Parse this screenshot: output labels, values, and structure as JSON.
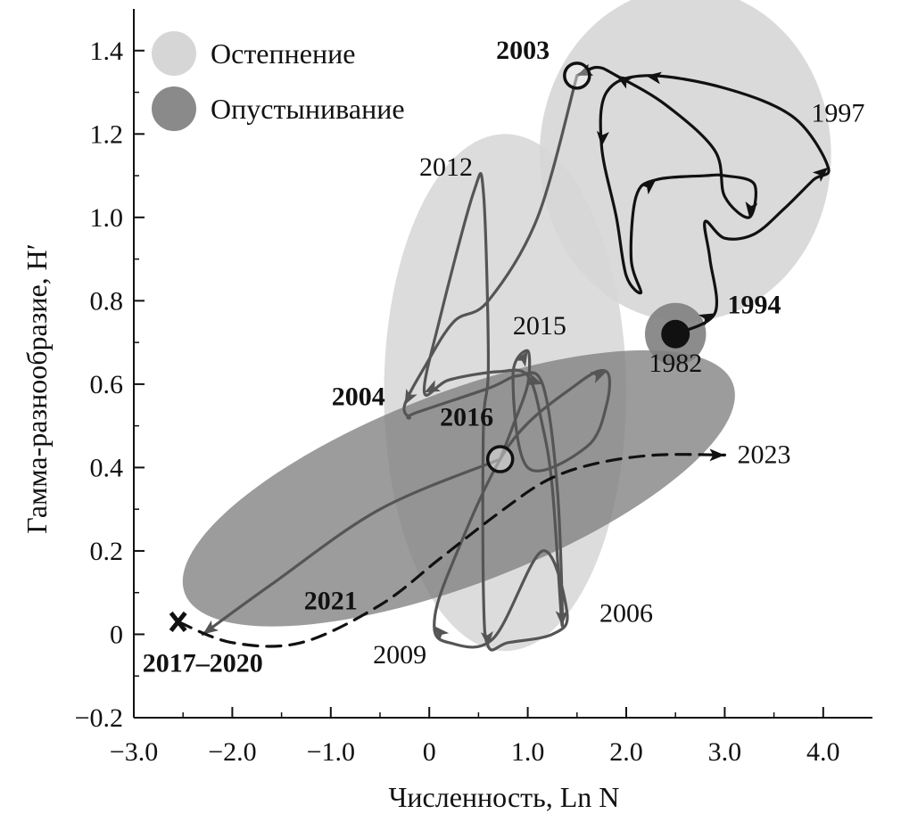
{
  "chart_data": {
    "type": "scatter",
    "title": "",
    "xlabel": "Численность, Ln N",
    "ylabel": "Гамма-разнообразие, H′",
    "xlim": [
      -3.0,
      4.5
    ],
    "ylim": [
      -0.2,
      1.5
    ],
    "xticks": [
      -3.0,
      -2.0,
      -1.0,
      0,
      1.0,
      2.0,
      3.0,
      4.0
    ],
    "xtick_labels": [
      "−3.0",
      "−2.0",
      "−1.0",
      "0",
      "1.0",
      "2.0",
      "3.0",
      "4.0"
    ],
    "yticks": [
      -0.2,
      0,
      0.2,
      0.4,
      0.6,
      0.8,
      1.0,
      1.2,
      1.4
    ],
    "ytick_labels": [
      "−0.2",
      "0",
      "0.2",
      "0.4",
      "0.6",
      "0.8",
      "1.0",
      "1.2",
      "1.4"
    ],
    "grid": false,
    "legend_position": "top-left",
    "legend": [
      {
        "label": "Остепнение",
        "color": "#d6d6d6"
      },
      {
        "label": "Опустынивание",
        "color": "#8a8a8a"
      }
    ],
    "regions": [
      {
        "kind": "Остепнение",
        "cx": 0.77,
        "cy": 0.58,
        "rx": 1.23,
        "ry": 0.62,
        "rotation_deg": 0,
        "color": "#d6d6d6",
        "opacity": 0.85
      },
      {
        "kind": "Остепнение",
        "cx": 2.6,
        "cy": 1.15,
        "rx": 1.48,
        "ry": 0.4,
        "rotation_deg": 0,
        "color": "#d6d6d6",
        "opacity": 0.9
      },
      {
        "kind": "Опустынивание",
        "cx": 0.3,
        "cy": 0.35,
        "rx": 2.98,
        "ry": 0.23,
        "rotation_deg": -21,
        "color": "#808080",
        "opacity": 0.78
      },
      {
        "kind": "Опустынивание",
        "cx": 2.5,
        "cy": 0.72,
        "rx": 0.31,
        "ry": 0.075,
        "rotation_deg": 0,
        "color": "#808080",
        "opacity": 0.9
      }
    ],
    "paths": [
      {
        "segment": "1994–2003",
        "color": "#111111",
        "style": "solid",
        "points": [
          [
            2.5,
            0.72
          ],
          [
            2.9,
            0.77
          ],
          [
            2.85,
            0.9
          ],
          [
            2.8,
            0.99
          ],
          [
            3.0,
            0.95
          ],
          [
            3.3,
            0.96
          ],
          [
            3.6,
            1.02
          ],
          [
            3.9,
            1.09
          ],
          [
            4.05,
            1.12
          ],
          [
            3.7,
            1.24
          ],
          [
            3.0,
            1.31
          ],
          [
            2.2,
            1.34
          ],
          [
            1.8,
            1.3
          ],
          [
            1.75,
            1.17
          ],
          [
            1.9,
            1.0
          ],
          [
            2.0,
            0.86
          ],
          [
            2.15,
            0.82
          ],
          [
            2.05,
            0.9
          ],
          [
            2.1,
            1.05
          ],
          [
            2.3,
            1.09
          ],
          [
            2.8,
            1.1
          ],
          [
            3.0,
            1.1
          ],
          [
            3.3,
            1.08
          ],
          [
            3.25,
            1.0
          ],
          [
            3.0,
            1.05
          ],
          [
            2.9,
            1.16
          ],
          [
            2.4,
            1.27
          ],
          [
            1.9,
            1.34
          ],
          [
            1.7,
            1.36
          ],
          [
            1.5,
            1.34
          ]
        ],
        "arrows_at": [
          1,
          8,
          11,
          13,
          19,
          23,
          27,
          29
        ]
      },
      {
        "segment": "2003–2016",
        "color": "#555555",
        "style": "solid",
        "points": [
          [
            1.5,
            1.34
          ],
          [
            1.1,
            1.0
          ],
          [
            0.6,
            0.8
          ],
          [
            0.25,
            0.75
          ],
          [
            -0.05,
            0.64
          ],
          [
            -0.25,
            0.55
          ],
          [
            -0.2,
            0.52
          ],
          [
            -0.15,
            0.53
          ],
          [
            0.6,
            0.59
          ],
          [
            0.9,
            0.62
          ],
          [
            1.15,
            0.6
          ],
          [
            1.3,
            0.35
          ],
          [
            1.35,
            0.02
          ],
          [
            1.25,
            0.35
          ],
          [
            1.15,
            0.5
          ],
          [
            1.0,
            0.62
          ],
          [
            0.7,
            0.63
          ],
          [
            0.2,
            0.61
          ],
          [
            -0.05,
            0.58
          ],
          [
            0.1,
            0.75
          ],
          [
            0.45,
            1.06
          ],
          [
            0.55,
            1.06
          ],
          [
            0.6,
            0.65
          ],
          [
            0.55,
            0.5
          ],
          [
            0.55,
            0.1
          ],
          [
            0.6,
            -0.03
          ],
          [
            0.8,
            -0.02
          ],
          [
            1.25,
            0.0
          ],
          [
            1.4,
            0.05
          ],
          [
            1.15,
            0.2
          ],
          [
            0.65,
            -0.01
          ],
          [
            0.2,
            -0.02
          ],
          [
            0.05,
            0.02
          ],
          [
            0.2,
            0.15
          ],
          [
            0.8,
            0.45
          ],
          [
            1.5,
            0.6
          ],
          [
            1.8,
            0.63
          ],
          [
            1.8,
            0.55
          ],
          [
            1.6,
            0.45
          ],
          [
            1.0,
            0.4
          ],
          [
            0.85,
            0.62
          ],
          [
            1.0,
            0.68
          ],
          [
            1.0,
            0.6
          ],
          [
            0.85,
            0.5
          ],
          [
            0.72,
            0.42
          ]
        ],
        "arrows_at": [
          5,
          10,
          12,
          18,
          25,
          32,
          36,
          41
        ]
      },
      {
        "segment": "2016–2017–2020",
        "color": "#555555",
        "style": "solid",
        "points": [
          [
            0.72,
            0.42
          ],
          [
            -0.5,
            0.3
          ],
          [
            -1.6,
            0.12
          ],
          [
            -2.3,
            0.0
          ]
        ],
        "arrows_at": [
          3
        ]
      },
      {
        "segment": "2021–2023",
        "color": "#111111",
        "style": "dashed",
        "points": [
          [
            -2.55,
            0.03
          ],
          [
            -2.0,
            -0.02
          ],
          [
            -1.3,
            -0.02
          ],
          [
            -0.5,
            0.07
          ],
          [
            0.1,
            0.18
          ],
          [
            0.7,
            0.29
          ],
          [
            1.2,
            0.37
          ],
          [
            1.7,
            0.41
          ],
          [
            2.3,
            0.43
          ],
          [
            3.0,
            0.43
          ]
        ],
        "arrows_at": [
          9
        ]
      }
    ],
    "markers": [
      {
        "year": "1994",
        "x": 2.5,
        "y": 0.72,
        "symbol": "filled-circle"
      },
      {
        "year": "2003",
        "x": 1.5,
        "y": 1.34,
        "symbol": "open-circle"
      },
      {
        "year": "2016",
        "x": 0.72,
        "y": 0.42,
        "symbol": "open-circle"
      },
      {
        "year": "2017–2020",
        "x": -2.55,
        "y": 0.03,
        "symbol": "cross"
      }
    ],
    "labels": [
      {
        "text": "2003",
        "x": 0.95,
        "y": 1.38,
        "bold": true
      },
      {
        "text": "1997",
        "x": 4.15,
        "y": 1.23,
        "bold": false
      },
      {
        "text": "2012",
        "x": 0.17,
        "y": 1.1,
        "bold": false
      },
      {
        "text": "1994",
        "x": 3.3,
        "y": 0.77,
        "bold": true
      },
      {
        "text": "2015",
        "x": 1.12,
        "y": 0.72,
        "bold": false
      },
      {
        "text": "1982",
        "x": 2.5,
        "y": 0.63,
        "bold": false
      },
      {
        "text": "2004",
        "x": -0.72,
        "y": 0.55,
        "bold": true
      },
      {
        "text": "2016",
        "x": 0.38,
        "y": 0.5,
        "bold": true
      },
      {
        "text": "2023",
        "x": 3.4,
        "y": 0.41,
        "bold": false
      },
      {
        "text": "2021",
        "x": -1.0,
        "y": 0.06,
        "bold": true
      },
      {
        "text": "2006",
        "x": 2.0,
        "y": 0.03,
        "bold": false
      },
      {
        "text": "2009",
        "x": -0.3,
        "y": -0.07,
        "bold": false
      },
      {
        "text": "2017–2020",
        "x": -2.3,
        "y": -0.09,
        "bold": true
      }
    ]
  }
}
